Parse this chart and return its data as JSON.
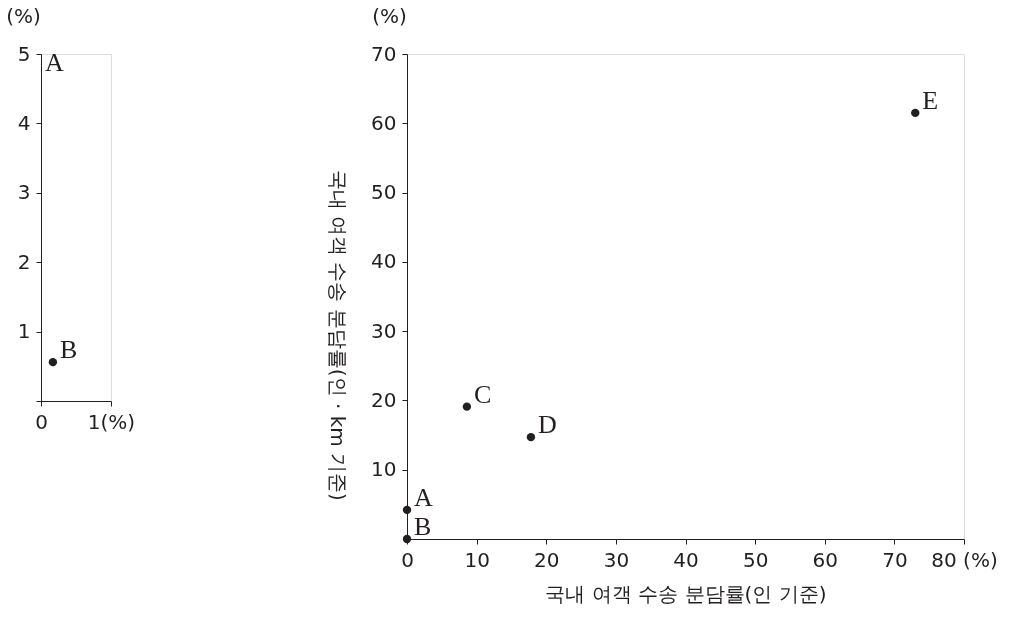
{
  "chart_data": [
    {
      "type": "scatter",
      "x": [
        0.17
      ],
      "values": [
        0.56
      ],
      "color": "#231f20",
      "marker": "circle",
      "grid": false,
      "ylabel": "(%)",
      "xlim": [
        0,
        1
      ],
      "xticks": [
        0,
        {
          "value": 1,
          "label": "1(%)"
        }
      ],
      "ylim": [
        0,
        5
      ],
      "yticks": [
        {
          "value": 0,
          "label": null
        },
        1,
        2,
        3,
        4,
        5
      ],
      "annotations": [
        "A",
        {
          "text": "B",
          "x": 0.17,
          "y": 0.56
        }
      ]
    },
    {
      "type": "scatter",
      "x": [
        0,
        0,
        8.6,
        17.8,
        73
      ],
      "values": [
        4.2,
        0,
        19.1,
        14.7,
        61.5
      ],
      "color": "#231f20",
      "marker": "circle",
      "grid": false,
      "ylabel": "(%)",
      "xlabel": "국내 여객 수송 분담률(인 기준)",
      "xlim": [
        0,
        80
      ],
      "xticks": [
        0,
        10,
        20,
        30,
        40,
        50,
        60,
        70,
        {
          "value": 80,
          "label": "80 (%)"
        }
      ],
      "ylim": [
        0,
        70
      ],
      "yticks": [
        10,
        20,
        30,
        40,
        50,
        60,
        70
      ],
      "annotations": [
        "국내 여객 수송 분담률(인 · km 기준)",
        {
          "text": "A",
          "x": 0,
          "y": 4.2
        },
        {
          "text": "B",
          "x": 0,
          "y": 0
        },
        {
          "text": "C",
          "x": 8.6,
          "y": 19.1
        },
        {
          "text": "D",
          "x": 17.8,
          "y": 14.7
        },
        {
          "text": "E",
          "x": 73,
          "y": 61.5
        }
      ]
    }
  ]
}
